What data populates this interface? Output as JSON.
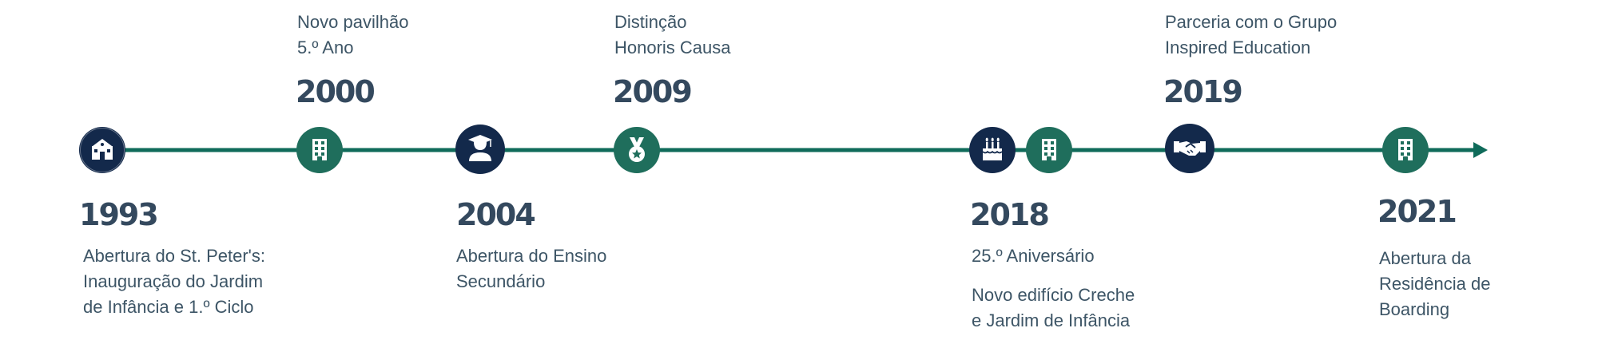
{
  "colors": {
    "line": "#0f6b5a",
    "navy": "#13294b",
    "green": "#1f6e5c",
    "text": "#34495e"
  },
  "milestones": [
    {
      "year": "1993",
      "lines": [
        "Abertura do St. Peter's:",
        "Inauguração do Jardim",
        "de Infância e 1.º Ciclo"
      ],
      "icon": "school-building-icon",
      "color": "navy"
    },
    {
      "year": "2000",
      "lines": [
        "Novo pavilhão",
        "5.º Ano"
      ],
      "icon": "building-icon",
      "color": "green"
    },
    {
      "year": "2004",
      "lines": [
        "Abertura do Ensino",
        "Secundário"
      ],
      "icon": "graduate-icon",
      "color": "navy"
    },
    {
      "year": "2009",
      "lines": [
        "Distinção",
        "Honoris Causa"
      ],
      "icon": "medal-icon",
      "color": "green"
    },
    {
      "year": "2018",
      "lines": [
        "25.º Aniversário"
      ],
      "lines2": [
        "Novo edifício Creche",
        "e Jardim de Infância"
      ],
      "icon": "birthday-cake-icon",
      "icon2": "building-icon",
      "color": "navy"
    },
    {
      "year": "2019",
      "lines": [
        "Parceria com o Grupo",
        "Inspired Education"
      ],
      "icon": "handshake-icon",
      "color": "navy"
    },
    {
      "year": "2021",
      "lines": [
        "Abertura da",
        "Residência de",
        "Boarding"
      ],
      "icon": "building-icon",
      "color": "green"
    }
  ]
}
